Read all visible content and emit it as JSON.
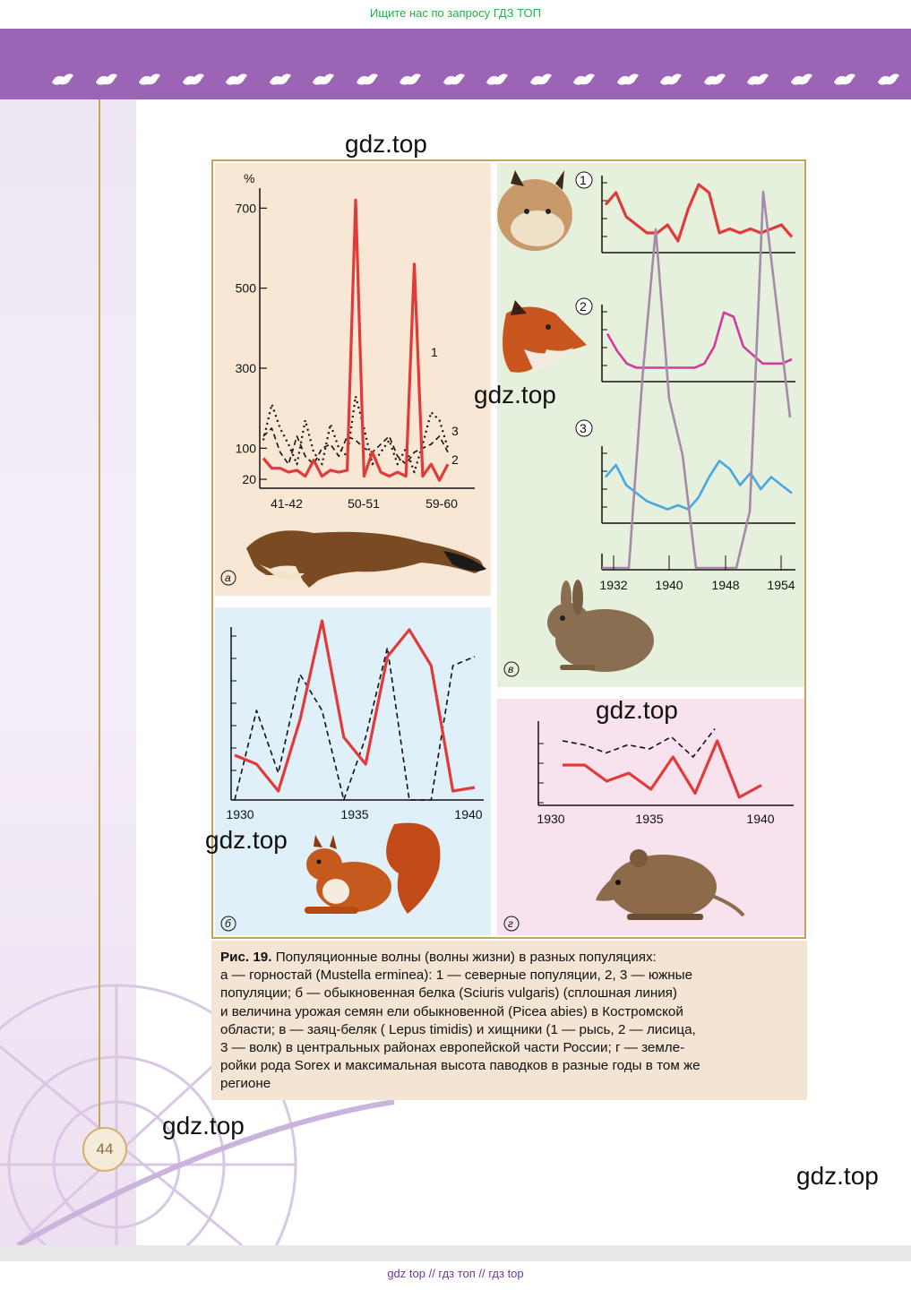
{
  "top_banner": "Ищите нас по запросу ГДЗ ТОП",
  "page_number": "44",
  "watermark": "gdz.top",
  "footer": "gdz top  //  гдз топ  //  гдз top",
  "colors": {
    "header": "#9b64b5",
    "red": "#e03a3a",
    "magenta": "#d43a9c",
    "blue": "#4aa8e0",
    "lavender": "#a58aaa",
    "gold": "#c9a25a"
  },
  "header_icons": [
    "bird-icon",
    "fox-icon",
    "meerkat-icon",
    "insect-icon",
    "boar-icon",
    "kangaroo-icon",
    "bird-icon",
    "butterfly-icon",
    "bison-icon",
    "scorpion-icon",
    "lizard-icon",
    "swallow-icon",
    "bird-icon",
    "fox-icon",
    "meerkat-icon",
    "insect-icon",
    "boar-icon",
    "kangaroo-icon",
    "bird-icon",
    "butterfly-icon"
  ],
  "caption": {
    "lead": "Рис. 19.",
    "lines": [
      " Популяционные волны (волны жизни) в разных популяциях:",
      "а — горностай (Mustella erminea): 1 — северные популяции, 2, 3 — южные",
      "популяции; б — обыкновенная белка (Sciuris vulgaris) (сплошная линия)",
      "и величина урожая семян ели обыкновенной (Picea abies) в Костромской",
      "области; в — заяц-беляк ( Lepus timidis) и хищники (1 — рысь, 2 — лисица,",
      "3 — волк) в центральных районах европейской части России; г — земле-",
      "ройки рода Sorex и максимальная высота паводков в разные годы в том же",
      "регионе"
    ]
  },
  "chart_data": [
    {
      "panel": "а",
      "type": "line",
      "ylabel": "%",
      "yticks": [
        "700",
        "500",
        "300",
        "100",
        "20"
      ],
      "xticks": [
        "41-42",
        "50-51",
        "59-60"
      ],
      "ylim": [
        0,
        750
      ],
      "series": [
        {
          "name": "1",
          "style": "solid-red",
          "values": [
            75,
            50,
            50,
            40,
            45,
            30,
            70,
            30,
            45,
            40,
            45,
            720,
            30,
            90,
            40,
            30,
            40,
            30,
            560,
            30,
            60,
            20,
            60
          ]
        },
        {
          "name": "2",
          "style": "dashed-black",
          "values": [
            130,
            150,
            90,
            60,
            130,
            80,
            60,
            100,
            110,
            80,
            130,
            120,
            100,
            90,
            110,
            130,
            80,
            60,
            90,
            100,
            110,
            130,
            90
          ]
        },
        {
          "name": "3",
          "style": "dotted-black",
          "values": [
            120,
            210,
            150,
            110,
            60,
            170,
            90,
            60,
            160,
            100,
            80,
            230,
            150,
            60,
            90,
            120,
            60,
            100,
            40,
            110,
            190,
            170,
            100
          ]
        }
      ]
    },
    {
      "panel": "б",
      "type": "line",
      "xticks": [
        "1930",
        "1935",
        "1940"
      ],
      "x": [
        1930,
        1931,
        1932,
        1933,
        1934,
        1935,
        1936,
        1937,
        1938,
        1939,
        1940,
        1941
      ],
      "series": [
        {
          "style": "solid-red",
          "values": [
            25,
            20,
            5,
            45,
            100,
            35,
            20,
            80,
            95,
            75,
            5,
            7
          ]
        },
        {
          "style": "dashed-black",
          "values": [
            0,
            50,
            15,
            70,
            50,
            0,
            35,
            85,
            0,
            0,
            75,
            80
          ]
        }
      ]
    },
    {
      "panel": "в",
      "type": "line",
      "xticks": [
        "1932",
        "1940",
        "1948",
        "1954"
      ],
      "series": [
        {
          "name": "1",
          "style": "solid-red",
          "values": [
            55,
            70,
            40,
            30,
            20,
            20,
            30,
            10,
            50,
            80,
            70,
            20,
            25,
            20,
            25,
            20,
            25,
            30,
            15
          ]
        },
        {
          "name": "2",
          "style": "solid-magenta",
          "values": [
            50,
            30,
            15,
            10,
            10,
            10,
            10,
            10,
            10,
            10,
            15,
            35,
            75,
            70,
            35,
            25,
            15,
            15,
            15,
            20
          ]
        },
        {
          "name": "3",
          "style": "solid-blue",
          "values": [
            55,
            70,
            45,
            35,
            25,
            20,
            15,
            20,
            15,
            30,
            55,
            75,
            65,
            45,
            60,
            40,
            55,
            45,
            35
          ]
        },
        {
          "name": "заяц-беляк",
          "style": "solid-lavender",
          "values": [
            0,
            0,
            0,
            50,
            90,
            45,
            30,
            0,
            0,
            0,
            0,
            15,
            100,
            70,
            40
          ]
        }
      ]
    },
    {
      "panel": "г",
      "type": "line",
      "xticks": [
        "1930",
        "1935",
        "1940"
      ],
      "series": [
        {
          "style": "solid-red",
          "values": [
            50,
            50,
            30,
            40,
            20,
            60,
            15,
            80,
            10,
            25
          ]
        },
        {
          "style": "dashed-black",
          "values": [
            80,
            75,
            65,
            75,
            70,
            85,
            60,
            95
          ]
        }
      ]
    }
  ]
}
